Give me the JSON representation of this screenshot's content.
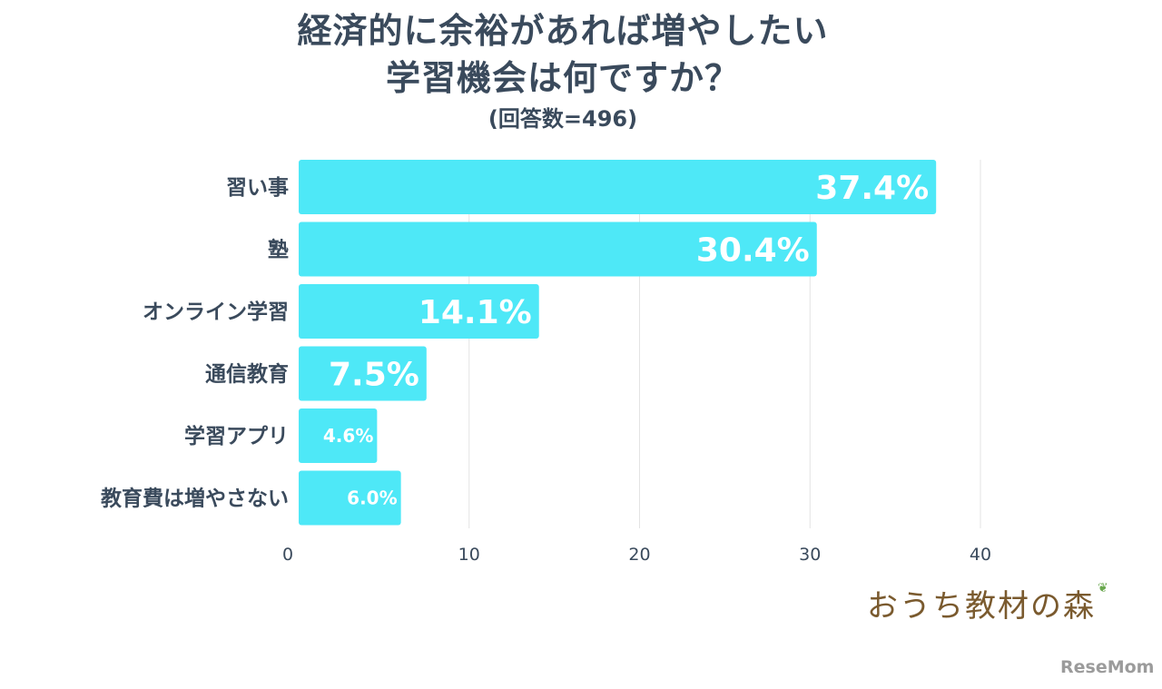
{
  "header": {
    "title_line1": "経済的に余裕があれば増やしたい",
    "title_line2": "学習機会は何ですか？",
    "subtitle": "(回答数=496)"
  },
  "chart_data": {
    "type": "bar",
    "orientation": "horizontal",
    "title": "経済的に余裕があれば増やしたい学習機会は何ですか？",
    "subtitle": "(回答数=496)",
    "categories": [
      "習い事",
      "塾",
      "オンライン学習",
      "通信教育",
      "学習アプリ",
      "教育費は増やさない"
    ],
    "values": [
      37.4,
      30.4,
      14.1,
      7.5,
      4.6,
      6.0
    ],
    "value_labels": [
      "37.4%",
      "30.4%",
      "14.1%",
      "7.5%",
      "4.6%",
      "6.0%"
    ],
    "xlim": [
      0,
      40
    ],
    "xticks": [
      0,
      10,
      20,
      30,
      40
    ],
    "xtick_labels": [
      "0",
      "10",
      "20",
      "30",
      "40"
    ],
    "grid": "vertical",
    "legend": "none",
    "bar_color": "#4ee8f7"
  },
  "branding": {
    "logo_text": "おうち教材の森",
    "watermark": "ReseMom"
  }
}
